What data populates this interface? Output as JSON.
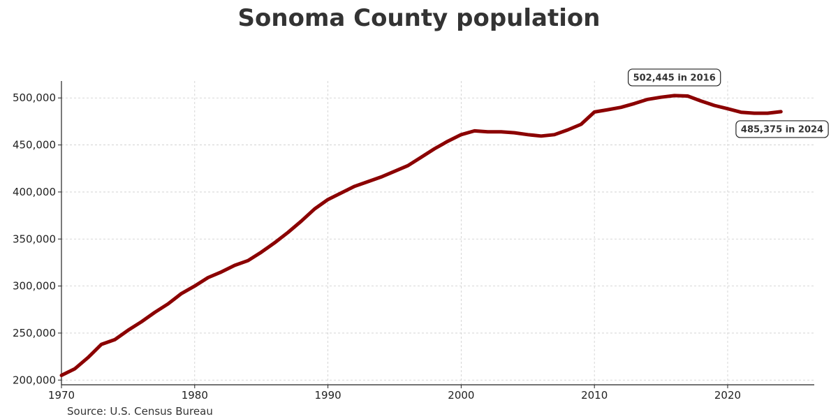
{
  "chart_data": {
    "type": "line",
    "title": "Sonoma County population",
    "xlabel": "",
    "ylabel": "",
    "xlim": [
      1970,
      2026.5
    ],
    "ylim": [
      195000,
      518000
    ],
    "x_ticks": [
      1970,
      1980,
      1990,
      2000,
      2010,
      2020
    ],
    "y_ticks": [
      200000,
      250000,
      300000,
      350000,
      400000,
      450000,
      500000
    ],
    "y_tick_labels": [
      "200,000",
      "250,000",
      "300,000",
      "350,000",
      "400,000",
      "450,000",
      "500,000"
    ],
    "grid": true,
    "series": [
      {
        "x": [
          1970,
          1971,
          1972,
          1973,
          1974,
          1975,
          1976,
          1977,
          1978,
          1979,
          1980,
          1981,
          1982,
          1983,
          1984,
          1985,
          1986,
          1987,
          1988,
          1989,
          1990,
          1991,
          1992,
          1993,
          1994,
          1995,
          1996,
          1997,
          1998,
          1999,
          2000,
          2001,
          2002,
          2003,
          2004,
          2005,
          2006,
          2007,
          2008,
          2009,
          2010,
          2011,
          2012,
          2013,
          2014,
          2015,
          2016,
          2017,
          2018,
          2019,
          2020,
          2021,
          2022,
          2023,
          2024
        ],
        "values": [
          205000,
          212000,
          224000,
          238000,
          243000,
          253000,
          262000,
          272000,
          281000,
          292000,
          300000,
          309000,
          315000,
          322000,
          327000,
          336000,
          346000,
          357000,
          369000,
          382000,
          392000,
          399000,
          406000,
          411000,
          416000,
          422000,
          428000,
          437000,
          446000,
          454000,
          461000,
          465000,
          464000,
          464000,
          463000,
          461000,
          459500,
          461000,
          466000,
          472000,
          485000,
          487500,
          490000,
          494000,
          498500,
          500800,
          502445,
          502000,
          496800,
          492000,
          488500,
          484800,
          483800,
          483800,
          485375
        ]
      }
    ],
    "line_color": "#8b0000",
    "annotations": [
      {
        "text": "502,445 in 2016",
        "x": 2016,
        "y": 502445,
        "position": "above-left"
      },
      {
        "text": "485,375 in 2024",
        "x": 2024,
        "y": 485375,
        "position": "below-right"
      }
    ],
    "source": "Source: U.S. Census Bureau"
  }
}
